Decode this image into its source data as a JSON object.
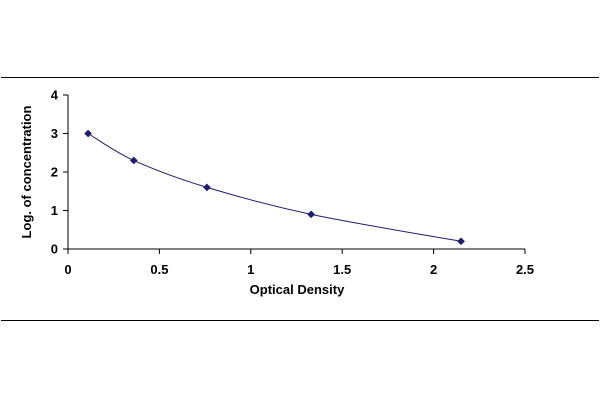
{
  "chart_data": {
    "type": "scatter",
    "xlabel": "Optical Density",
    "ylabel": "Log. of concentration",
    "xlim": [
      0,
      2.5
    ],
    "ylim": [
      0,
      4
    ],
    "x_ticks": [
      "0",
      "0.5",
      "1",
      "1.5",
      "2",
      "2.5"
    ],
    "y_ticks": [
      "0",
      "1",
      "2",
      "3",
      "4"
    ],
    "grid": false,
    "legend": "none",
    "series": [
      {
        "x": [
          0.11,
          0.36,
          0.76,
          1.33,
          2.15
        ],
        "y": [
          3.0,
          2.3,
          1.6,
          0.9,
          0.2
        ]
      }
    ],
    "fit_curve": true,
    "colors": {
      "marker": "#1f1f6e",
      "curve": "#1f1f6e",
      "axis": "#000000"
    }
  }
}
